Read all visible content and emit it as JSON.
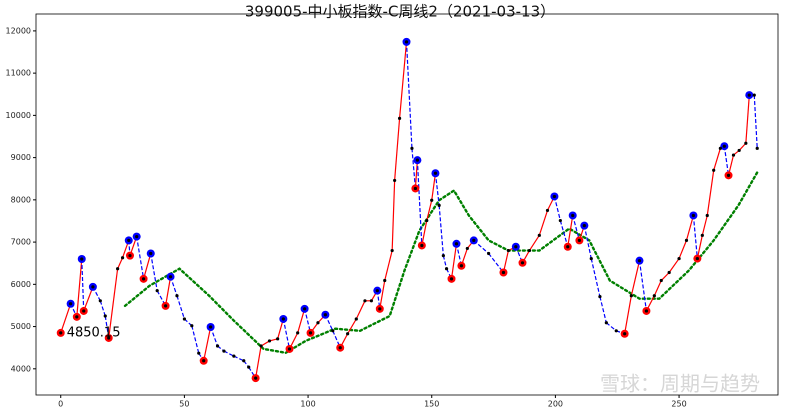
{
  "chart_data": {
    "type": "line",
    "title": "399005-中小板指数-C周线2（2021-03-13）",
    "xlim": [
      -10,
      290
    ],
    "ylim": [
      3380,
      12400
    ],
    "xticks": [
      0,
      50,
      100,
      150,
      200,
      250
    ],
    "yticks": [
      4000,
      5000,
      6000,
      7000,
      8000,
      9000,
      10000,
      11000,
      12000
    ],
    "annotation": {
      "text": "4850.15",
      "x": 0,
      "y": 4850.15
    },
    "watermark": "雪球：周期与趋势",
    "series": [
      {
        "name": "price",
        "color": "black",
        "up_color": "red",
        "down_color": "blue",
        "x": [
          0,
          4,
          6.5,
          8.5,
          9.3,
          13,
          16,
          18,
          19.4,
          23,
          25,
          27.5,
          28,
          30.7,
          33.5,
          36.4,
          39,
          42.4,
          44.4,
          47,
          50,
          53,
          55.8,
          57.8,
          60.6,
          63.4,
          66,
          70,
          74,
          76,
          78.8,
          81,
          84.4,
          87.7,
          90,
          92.5,
          95.8,
          98.6,
          101,
          104,
          107,
          110,
          113,
          116,
          119.5,
          123,
          125.6,
          128,
          129,
          131,
          134,
          135,
          137,
          139.8,
          142,
          143.4,
          144.2,
          146,
          148,
          150,
          151.5,
          153,
          154.7,
          156,
          158,
          160,
          162,
          164.4,
          167,
          173,
          179,
          181,
          184,
          186.7,
          189.5,
          193.5,
          196.8,
          199.6,
          202,
          205,
          207,
          209.7,
          211.7,
          214.5,
          218,
          220.6,
          224.6,
          228,
          230.7,
          234,
          236.8,
          240,
          242.8,
          246,
          250,
          253,
          255.8,
          257.4,
          259.4,
          261.4,
          264,
          266.7,
          268.3,
          270,
          272,
          274.3,
          277,
          278.4,
          280.4,
          281.6
        ],
        "values": [
          4850,
          5540,
          5230,
          6600,
          5370,
          5940,
          5610,
          5250,
          4730,
          6370,
          6630,
          7040,
          6680,
          7130,
          6130,
          6730,
          5850,
          5490,
          6180,
          5730,
          5180,
          5020,
          4370,
          4190,
          4990,
          4540,
          4420,
          4300,
          4190,
          4040,
          3780,
          4540,
          4660,
          4710,
          5180,
          4470,
          4850,
          5420,
          4850,
          5090,
          5280,
          4900,
          4500,
          4830,
          5180,
          5610,
          5610,
          5850,
          5420,
          6090,
          6800,
          8460,
          9930,
          11740,
          9220,
          8270,
          8940,
          6920,
          7510,
          7990,
          8630,
          7870,
          6680,
          6370,
          6130,
          6960,
          6440,
          6850,
          7040,
          6730,
          6280,
          6800,
          6890,
          6510,
          6800,
          7160,
          7750,
          8080,
          7510,
          6890,
          7630,
          7040,
          7390,
          6610,
          5710,
          5090,
          4900,
          4830,
          5730,
          6560,
          5370,
          5730,
          6090,
          6280,
          6610,
          7040,
          7630,
          6610,
          7160,
          7630,
          8700,
          9220,
          9270,
          8580,
          9060,
          9170,
          9340,
          10480,
          10480,
          9220
        ]
      },
      {
        "name": "ma",
        "color": "green",
        "x": [
          26,
          36,
          48,
          60,
          70,
          82,
          91,
          99,
          111,
          121,
          133,
          139,
          145,
          153,
          159,
          165,
          173,
          181,
          193.5,
          205.6,
          213.7,
          222,
          234,
          242,
          254,
          264,
          274,
          281.6
        ],
        "values": [
          5490,
          5970,
          6370,
          5730,
          5140,
          4470,
          4380,
          4660,
          4950,
          4900,
          5250,
          6330,
          7270,
          7990,
          8220,
          7630,
          7040,
          6800,
          6800,
          7320,
          7040,
          6090,
          5660,
          5660,
          6330,
          7040,
          7870,
          8650
        ]
      },
      {
        "name": "highs",
        "color": "blue",
        "x": [
          4,
          8.5,
          13,
          27.5,
          30.7,
          36.4,
          44.4,
          60.6,
          90,
          98.6,
          107,
          128,
          139.8,
          144.2,
          151.5,
          160,
          167,
          184,
          199.6,
          207,
          211.7,
          234,
          255.8,
          268.3,
          278.4
        ],
        "values": [
          5540,
          6600,
          5940,
          7040,
          7130,
          6730,
          6180,
          4990,
          5180,
          5420,
          5280,
          5850,
          11740,
          8940,
          8630,
          6960,
          7040,
          6890,
          8080,
          7630,
          7390,
          6560,
          7630,
          9270,
          10480
        ]
      },
      {
        "name": "lows",
        "color": "red",
        "x": [
          0,
          6.5,
          9.3,
          19.4,
          28,
          33.5,
          42.4,
          57.8,
          78.8,
          92.5,
          101,
          113,
          129,
          143.4,
          146,
          158,
          162,
          179,
          186.7,
          205,
          209.7,
          228,
          236.8,
          257.4,
          270
        ],
        "values": [
          4850,
          5230,
          5370,
          4730,
          6680,
          6130,
          5490,
          4190,
          3780,
          4470,
          4850,
          4500,
          5420,
          8270,
          6920,
          6130,
          6440,
          6280,
          6510,
          6890,
          7040,
          4830,
          5370,
          6610,
          8580
        ]
      }
    ]
  }
}
